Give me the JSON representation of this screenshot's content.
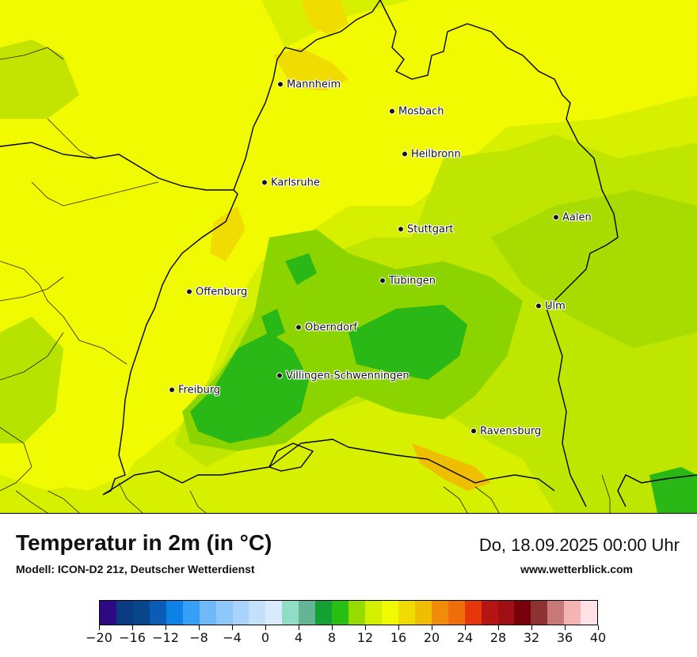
{
  "map": {
    "title": "Temperatur in 2m (in °C)",
    "model": "Modell: ICON-D2 21z, Deutscher Wetterdienst",
    "datetime": "Do, 18.09.2025 00:00 Uhr",
    "website": "www.wetterblick.com",
    "cities": [
      {
        "name": "Mannheim"
      },
      {
        "name": "Mosbach"
      },
      {
        "name": "Heilbronn"
      },
      {
        "name": "Karlsruhe"
      },
      {
        "name": "Aalen"
      },
      {
        "name": "Stuttgart"
      },
      {
        "name": "Tübingen"
      },
      {
        "name": "Offenburg"
      },
      {
        "name": "Ulm"
      },
      {
        "name": "Oberndorf"
      },
      {
        "name": "Villingen-Schwenningen"
      },
      {
        "name": "Freiburg"
      },
      {
        "name": "Ravensburg"
      }
    ]
  },
  "legend": {
    "labels": [
      "−20",
      "−16",
      "−12",
      "−8",
      "−4",
      "0",
      "4",
      "8",
      "12",
      "16",
      "20",
      "24",
      "28",
      "32",
      "36",
      "40"
    ],
    "colors": [
      "#2e0a82",
      "#0a3a82",
      "#08468c",
      "#0a5cb4",
      "#0d82e6",
      "#35a0f5",
      "#70b9f8",
      "#8ec8fa",
      "#a8d4fb",
      "#c4e1fc",
      "#d8ebfd",
      "#90dcc4",
      "#64b496",
      "#14a032",
      "#28be14",
      "#96dc00",
      "#d2f000",
      "#f0fa00",
      "#f0dc00",
      "#f0be00",
      "#f08c0a",
      "#f06e0a",
      "#e6370a",
      "#b41414",
      "#a00f14",
      "#78000a",
      "#8c3232",
      "#c87878",
      "#f5b4b4",
      "#ffe1e6"
    ]
  }
}
